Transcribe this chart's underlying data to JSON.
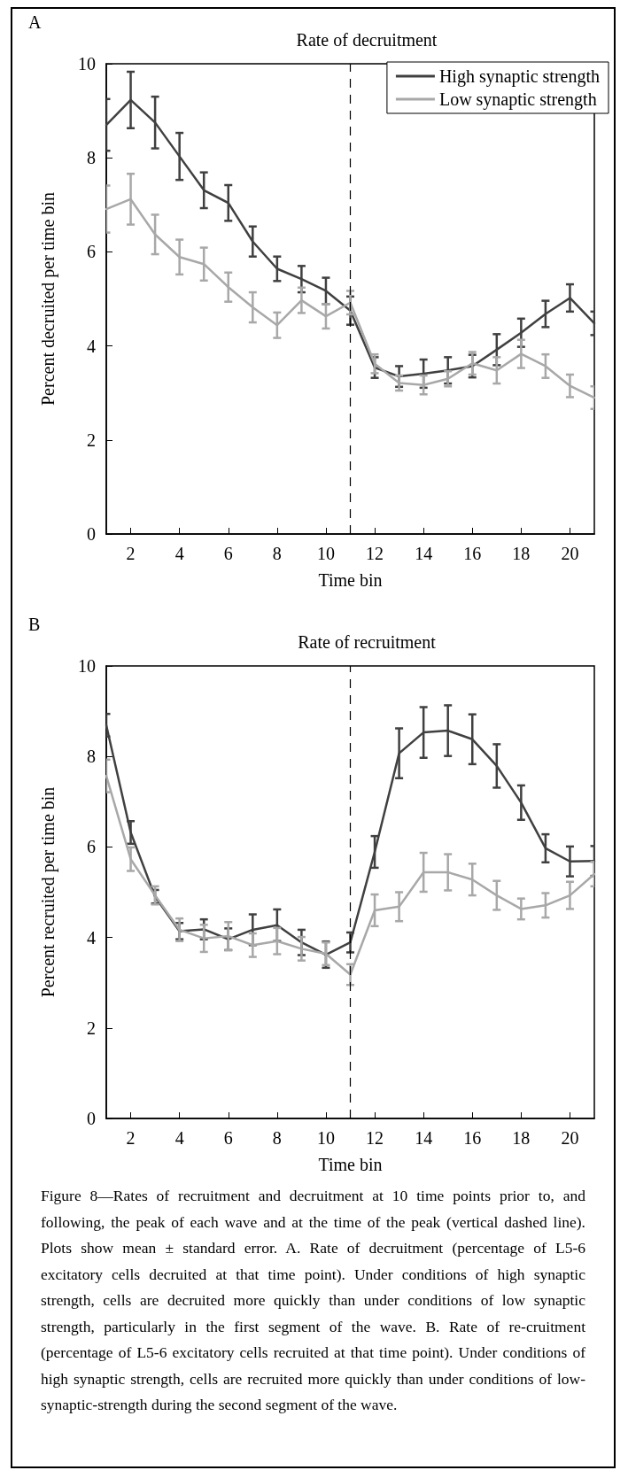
{
  "chart_data": [
    {
      "type": "line",
      "title": "Rate of decruitment",
      "xlabel": "Time bin",
      "ylabel": "Percent decruited per time bin",
      "annotations": [
        "A"
      ],
      "x": [
        1,
        2,
        3,
        4,
        5,
        6,
        7,
        8,
        9,
        10,
        11,
        12,
        13,
        14,
        15,
        16,
        17,
        18,
        19,
        20,
        21
      ],
      "xlim": [
        1,
        21
      ],
      "xticks": [
        2,
        4,
        6,
        8,
        10,
        12,
        14,
        16,
        18,
        20
      ],
      "ylim": [
        0,
        10
      ],
      "yticks": [
        0,
        2,
        4,
        6,
        8,
        10
      ],
      "grid": false,
      "legend": "top right",
      "marker": "none",
      "line_style": "solid",
      "ref_lines": [
        {
          "axis": "x",
          "value": 11,
          "color": "#000000",
          "line_style": "dashed"
        }
      ],
      "series": [
        {
          "name": "High synaptic strength",
          "color": "#404040",
          "values": [
            8.7,
            9.23,
            8.75,
            8.03,
            7.31,
            7.04,
            6.22,
            5.64,
            5.42,
            5.17,
            4.75,
            3.54,
            3.35,
            3.41,
            3.48,
            3.57,
            3.92,
            4.28,
            4.68,
            5.02,
            4.48
          ],
          "errors": [
            0.55,
            0.6,
            0.55,
            0.5,
            0.38,
            0.38,
            0.32,
            0.26,
            0.28,
            0.28,
            0.3,
            0.22,
            0.22,
            0.3,
            0.28,
            0.24,
            0.33,
            0.3,
            0.28,
            0.29,
            0.25
          ]
        },
        {
          "name": "Low synaptic strength",
          "color": "#a8a8a8",
          "values": [
            6.91,
            7.12,
            6.37,
            5.89,
            5.74,
            5.25,
            4.82,
            4.44,
            4.97,
            4.63,
            4.92,
            3.62,
            3.21,
            3.17,
            3.3,
            3.63,
            3.48,
            3.83,
            3.57,
            3.15,
            2.9
          ],
          "errors": [
            0.5,
            0.54,
            0.42,
            0.37,
            0.35,
            0.31,
            0.32,
            0.27,
            0.27,
            0.26,
            0.25,
            0.2,
            0.16,
            0.2,
            0.16,
            0.24,
            0.28,
            0.3,
            0.25,
            0.24,
            0.24
          ]
        }
      ]
    },
    {
      "type": "line",
      "title": "Rate of recruitment",
      "xlabel": "Time bin",
      "ylabel": "Percent recruited per time bin",
      "annotations": [
        "B",
        "Figure 8—Rates of recruitment and decruitment at 10 time points prior to, and following, the peak of each wave and at the time of the peak (vertical dashed line). Plots show mean ± standard error. A. Rate of decruitment (percentage of L5-6 excitatory cells decruited at that time point). Under conditions of high synaptic strength, cells are decruited more quickly than under conditions of low synaptic strength, particularly in the first segment of the wave. B. Rate of re-cruitment (percentage of L5-6 excitatory cells recruited at that time point). Under conditions of high synaptic strength, cells are recruited more quickly than under conditions of low-synaptic-strength during the second segment of the wave."
      ],
      "x": [
        1,
        2,
        3,
        4,
        5,
        6,
        7,
        8,
        9,
        10,
        11,
        12,
        13,
        14,
        15,
        16,
        17,
        18,
        19,
        20,
        21
      ],
      "xlim": [
        1,
        21
      ],
      "xticks": [
        2,
        4,
        6,
        8,
        10,
        12,
        14,
        16,
        18,
        20
      ],
      "ylim": [
        0,
        10
      ],
      "yticks": [
        0,
        2,
        4,
        6,
        8,
        10
      ],
      "grid": false,
      "legend": false,
      "marker": "none",
      "line_style": "solid",
      "ref_lines": [
        {
          "axis": "x",
          "value": 11,
          "color": "#000000",
          "line_style": "dashed"
        }
      ],
      "series": [
        {
          "color": "#404040",
          "values": [
            8.69,
            6.32,
            4.9,
            4.14,
            4.18,
            3.96,
            4.17,
            4.27,
            3.89,
            3.62,
            3.89,
            5.89,
            8.07,
            8.53,
            8.57,
            8.38,
            7.79,
            6.98,
            5.97,
            5.68,
            5.69
          ],
          "errors": [
            0.25,
            0.25,
            0.15,
            0.18,
            0.22,
            0.24,
            0.34,
            0.35,
            0.28,
            0.29,
            0.22,
            0.35,
            0.55,
            0.56,
            0.56,
            0.55,
            0.48,
            0.38,
            0.31,
            0.33,
            0.33
          ]
        },
        {
          "color": "#a8a8a8",
          "values": [
            7.57,
            5.73,
            4.93,
            4.17,
            3.98,
            4.03,
            3.83,
            3.92,
            3.75,
            3.64,
            3.18,
            4.6,
            4.68,
            5.44,
            5.44,
            5.28,
            4.93,
            4.63,
            4.71,
            4.93,
            5.4
          ],
          "errors": [
            0.36,
            0.26,
            0.2,
            0.25,
            0.3,
            0.31,
            0.26,
            0.29,
            0.26,
            0.25,
            0.23,
            0.35,
            0.32,
            0.43,
            0.4,
            0.35,
            0.32,
            0.23,
            0.27,
            0.3,
            0.27
          ]
        }
      ]
    }
  ]
}
